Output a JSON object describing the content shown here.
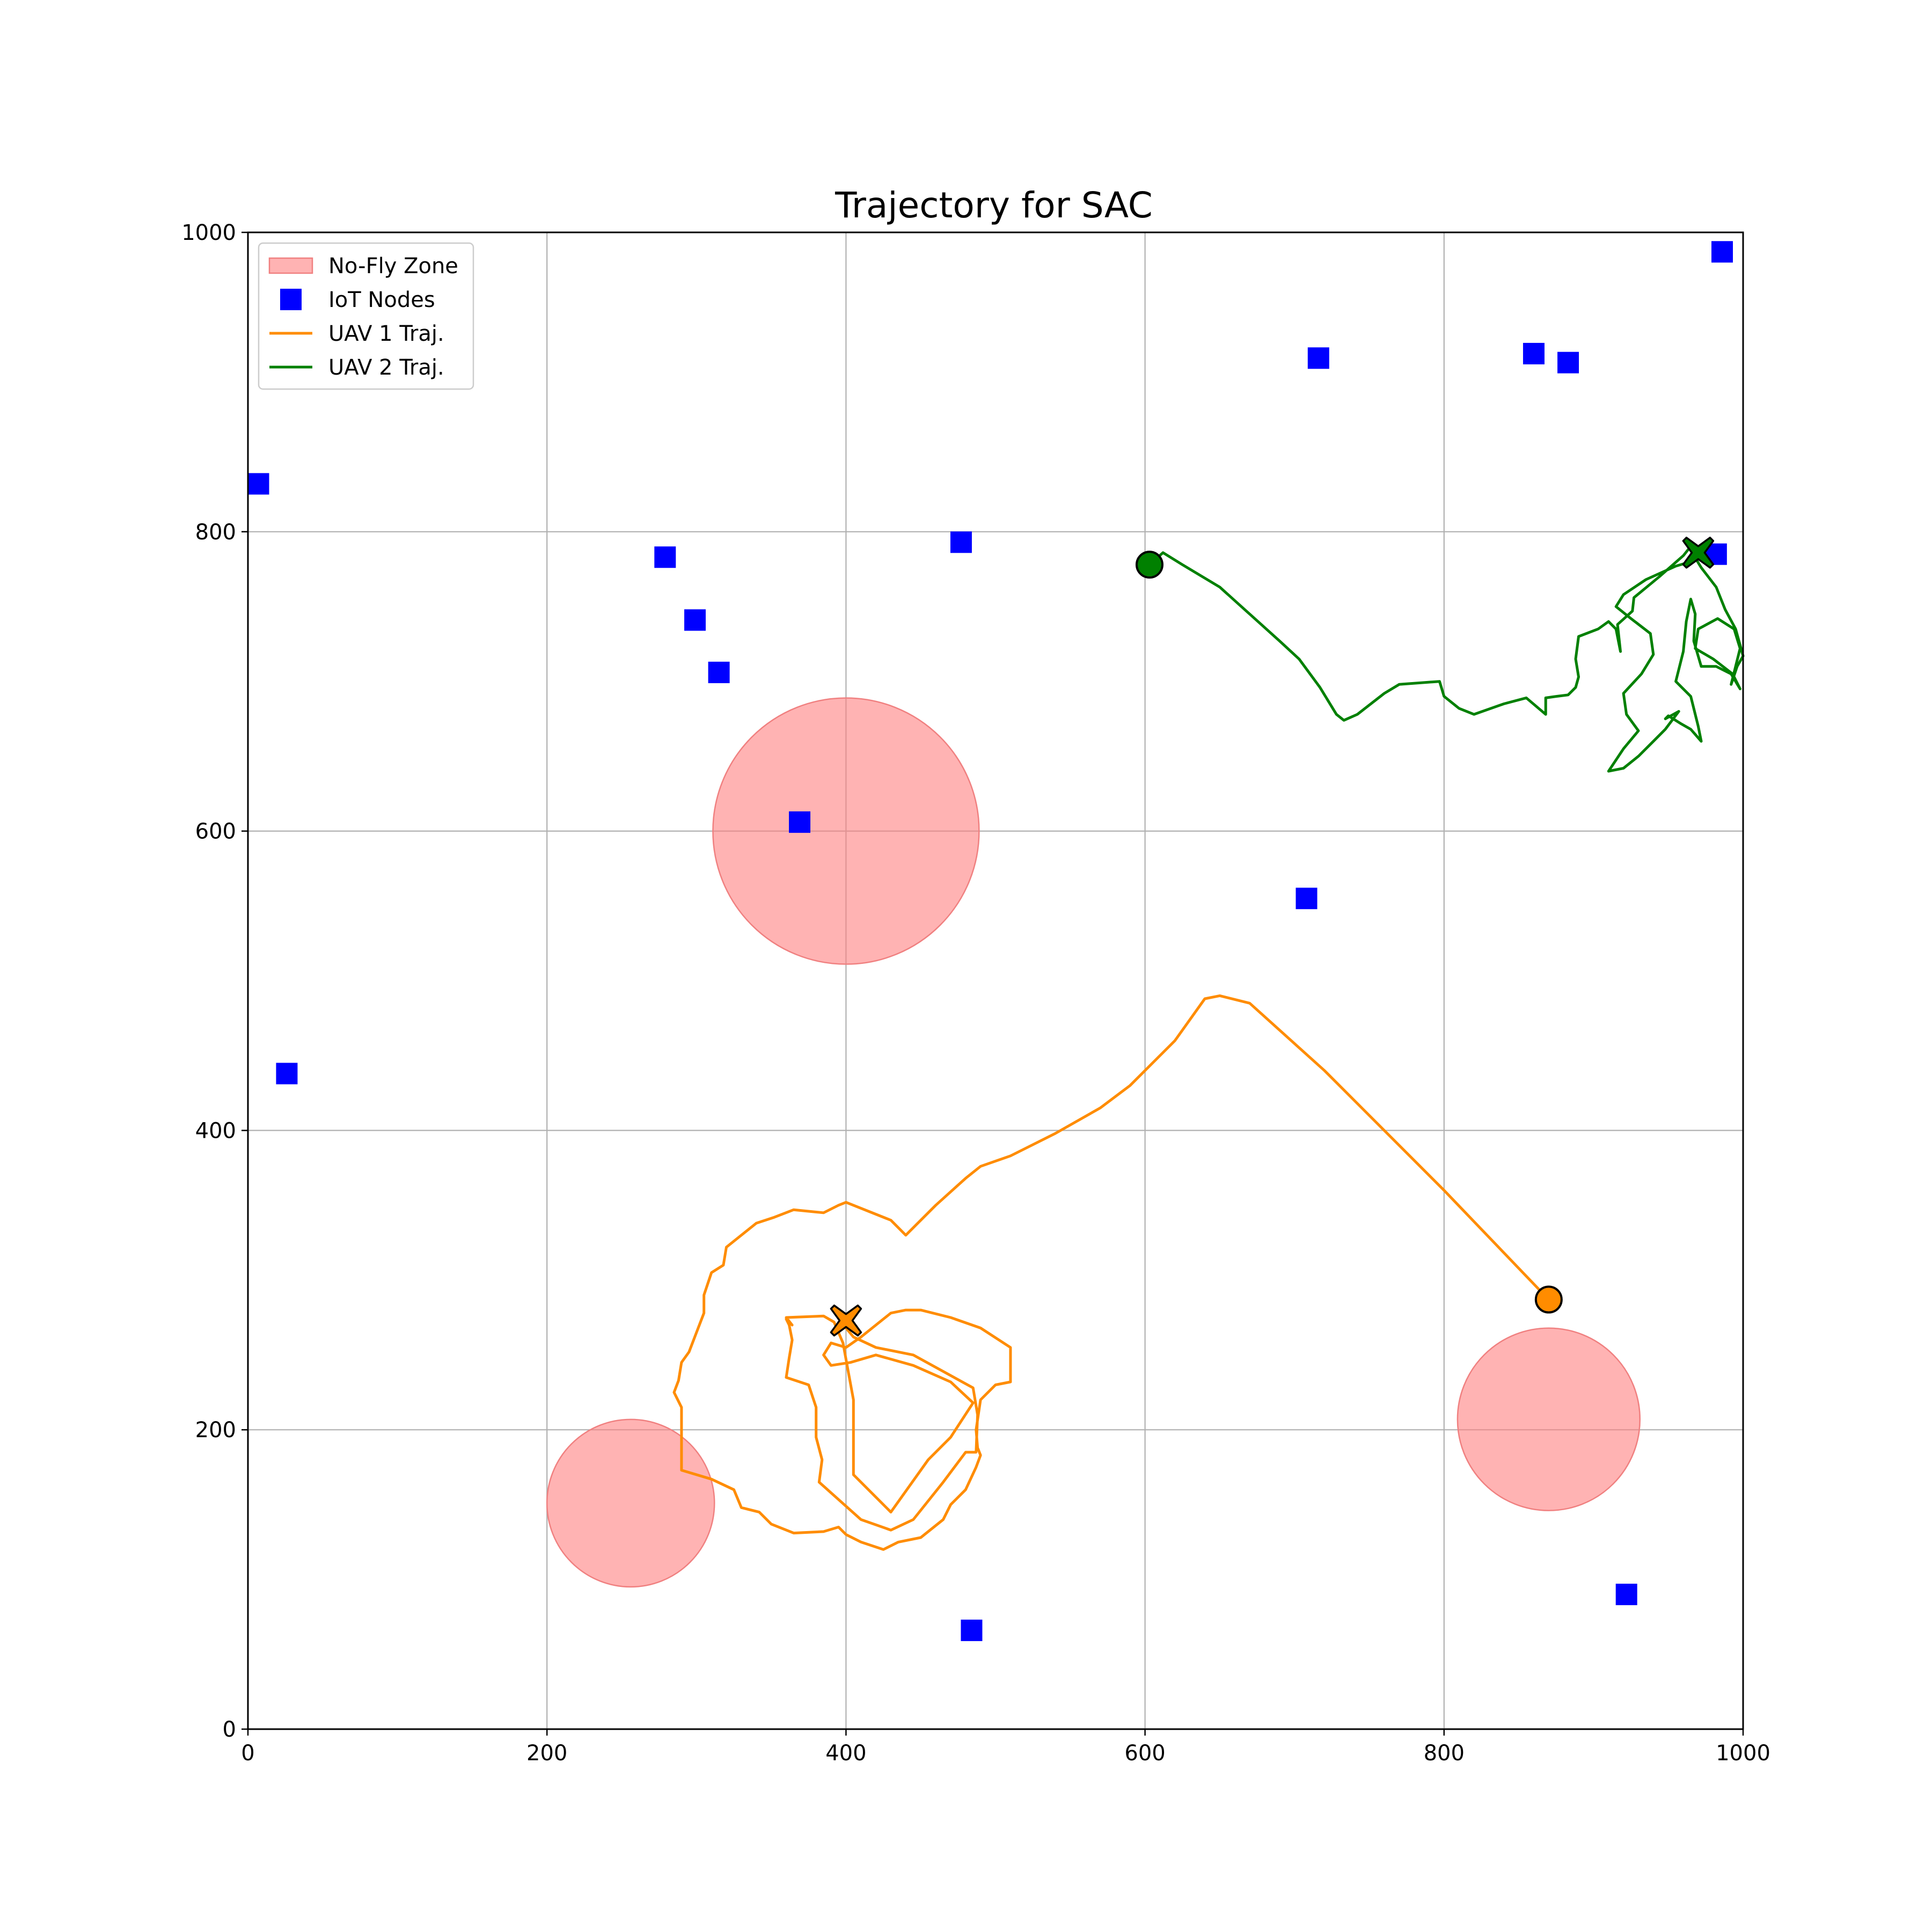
{
  "chart_data": {
    "type": "scatter",
    "title": "Trajectory for SAC",
    "xlabel": "",
    "ylabel": "",
    "xlim": [
      0,
      1000
    ],
    "ylim": [
      0,
      1000
    ],
    "x_ticks": [
      "0",
      "200",
      "400",
      "600",
      "800",
      "1000"
    ],
    "y_ticks": [
      "0",
      "200",
      "400",
      "600",
      "800",
      "1000"
    ],
    "grid": true,
    "legend_position": "top-left",
    "legend": [
      {
        "label": "No-Fly Zone",
        "kind": "patch",
        "color": "#ff8080"
      },
      {
        "label": "IoT Nodes",
        "kind": "square",
        "color": "#0000ff"
      },
      {
        "label": "UAV 1 Traj.",
        "kind": "line",
        "color": "#ff8c00"
      },
      {
        "label": "UAV 2 Traj.",
        "kind": "line",
        "color": "#008000"
      }
    ],
    "no_fly_zones": [
      {
        "cx": 400,
        "cy": 600,
        "r": 89
      },
      {
        "cx": 256,
        "cy": 151,
        "r": 56
      },
      {
        "cx": 870,
        "cy": 207,
        "r": 61
      }
    ],
    "iot_nodes": [
      [
        7,
        832
      ],
      [
        26,
        438
      ],
      [
        279,
        783
      ],
      [
        299,
        741
      ],
      [
        315,
        706
      ],
      [
        369,
        606
      ],
      [
        477,
        793
      ],
      [
        484,
        66
      ],
      [
        708,
        555
      ],
      [
        716,
        916
      ],
      [
        860,
        919
      ],
      [
        883,
        913
      ],
      [
        922,
        90
      ],
      [
        982,
        785
      ],
      [
        986,
        987
      ]
    ],
    "series": [
      {
        "name": "UAV 1 Traj.",
        "color": "#ff8c00",
        "start": [
          870,
          287
        ],
        "end": [
          400,
          273
        ],
        "points": [
          [
            870,
            287
          ],
          [
            800,
            360
          ],
          [
            720,
            440
          ],
          [
            670,
            485
          ],
          [
            650,
            490
          ],
          [
            640,
            488
          ],
          [
            620,
            460
          ],
          [
            590,
            430
          ],
          [
            570,
            415
          ],
          [
            540,
            398
          ],
          [
            510,
            383
          ],
          [
            490,
            376
          ],
          [
            480,
            368
          ],
          [
            460,
            350
          ],
          [
            440,
            330
          ],
          [
            430,
            340
          ],
          [
            400,
            352
          ],
          [
            395,
            350
          ],
          [
            385,
            345
          ],
          [
            365,
            347
          ],
          [
            352,
            342
          ],
          [
            340,
            338
          ],
          [
            330,
            330
          ],
          [
            320,
            322
          ],
          [
            318,
            310
          ],
          [
            310,
            305
          ],
          [
            305,
            290
          ],
          [
            305,
            278
          ],
          [
            300,
            265
          ],
          [
            295,
            252
          ],
          [
            290,
            245
          ],
          [
            288,
            233
          ],
          [
            285,
            225
          ],
          [
            290,
            215
          ],
          [
            290,
            200
          ],
          [
            290,
            173
          ],
          [
            310,
            167
          ],
          [
            325,
            160
          ],
          [
            330,
            148
          ],
          [
            342,
            145
          ],
          [
            350,
            137
          ],
          [
            365,
            131
          ],
          [
            385,
            132
          ],
          [
            395,
            135
          ],
          [
            400,
            130
          ],
          [
            410,
            125
          ],
          [
            425,
            120
          ],
          [
            435,
            125
          ],
          [
            450,
            128
          ],
          [
            465,
            140
          ],
          [
            470,
            150
          ],
          [
            480,
            160
          ],
          [
            487,
            175
          ],
          [
            490,
            183
          ],
          [
            488,
            188
          ],
          [
            487,
            200
          ],
          [
            490,
            220
          ],
          [
            500,
            230
          ],
          [
            510,
            232
          ],
          [
            510,
            255
          ],
          [
            490,
            268
          ],
          [
            470,
            275
          ],
          [
            450,
            280
          ],
          [
            440,
            280
          ],
          [
            430,
            278
          ],
          [
            410,
            262
          ],
          [
            400,
            255
          ],
          [
            390,
            258
          ],
          [
            385,
            250
          ],
          [
            390,
            243
          ],
          [
            403,
            245
          ],
          [
            420,
            250
          ],
          [
            445,
            243
          ],
          [
            470,
            232
          ],
          [
            485,
            218
          ],
          [
            470,
            195
          ],
          [
            455,
            180
          ],
          [
            430,
            145
          ],
          [
            405,
            170
          ],
          [
            405,
            220
          ],
          [
            398,
            258
          ],
          [
            392,
            272
          ],
          [
            385,
            276
          ],
          [
            360,
            275
          ],
          [
            364,
            270
          ],
          [
            360,
            274
          ],
          [
            362,
            270
          ],
          [
            364,
            260
          ],
          [
            362,
            248
          ],
          [
            360,
            235
          ],
          [
            375,
            230
          ],
          [
            380,
            215
          ],
          [
            380,
            195
          ],
          [
            384,
            180
          ],
          [
            382,
            165
          ],
          [
            410,
            140
          ],
          [
            430,
            133
          ],
          [
            445,
            140
          ],
          [
            465,
            165
          ],
          [
            480,
            185
          ],
          [
            487,
            185
          ],
          [
            488,
            210
          ],
          [
            485,
            228
          ],
          [
            445,
            250
          ],
          [
            420,
            255
          ],
          [
            405,
            262
          ],
          [
            400,
            268
          ]
        ]
      },
      {
        "name": "UAV 2 Traj.",
        "color": "#008000",
        "start": [
          603,
          778
        ],
        "end": [
          970,
          786
        ],
        "points": [
          [
            603,
            778
          ],
          [
            612,
            786
          ],
          [
            625,
            778
          ],
          [
            650,
            763
          ],
          [
            670,
            745
          ],
          [
            690,
            727
          ],
          [
            703,
            715
          ],
          [
            717,
            696
          ],
          [
            728,
            678
          ],
          [
            733,
            674
          ],
          [
            742,
            678
          ],
          [
            760,
            692
          ],
          [
            770,
            698
          ],
          [
            797,
            700
          ],
          [
            800,
            690
          ],
          [
            810,
            682
          ],
          [
            820,
            678
          ],
          [
            840,
            685
          ],
          [
            855,
            689
          ],
          [
            868,
            678
          ],
          [
            868,
            689
          ],
          [
            875,
            690
          ],
          [
            883,
            691
          ],
          [
            888,
            696
          ],
          [
            890,
            703
          ],
          [
            888,
            715
          ],
          [
            890,
            730
          ],
          [
            903,
            735
          ],
          [
            910,
            740
          ],
          [
            915,
            735
          ],
          [
            918,
            720
          ],
          [
            916,
            738
          ],
          [
            926,
            747
          ],
          [
            927,
            756
          ],
          [
            944,
            770
          ],
          [
            960,
            784
          ],
          [
            964,
            789
          ],
          [
            972,
            776
          ],
          [
            982,
            763
          ],
          [
            988,
            748
          ],
          [
            995,
            735
          ],
          [
            1000,
            717
          ],
          [
            996,
            710
          ],
          [
            992,
            698
          ],
          [
            998,
            722
          ],
          [
            994,
            735
          ],
          [
            983,
            742
          ],
          [
            970,
            735
          ],
          [
            968,
            722
          ],
          [
            980,
            715
          ],
          [
            993,
            705
          ],
          [
            998,
            695
          ],
          [
            992,
            705
          ],
          [
            982,
            710
          ],
          [
            972,
            710
          ],
          [
            967,
            727
          ],
          [
            968,
            745
          ],
          [
            965,
            755
          ],
          [
            962,
            740
          ],
          [
            960,
            720
          ],
          [
            955,
            700
          ],
          [
            965,
            690
          ],
          [
            970,
            670
          ],
          [
            972,
            660
          ],
          [
            965,
            668
          ],
          [
            958,
            672
          ],
          [
            950,
            677
          ],
          [
            948,
            675
          ],
          [
            957,
            680
          ],
          [
            948,
            668
          ],
          [
            940,
            660
          ],
          [
            930,
            650
          ],
          [
            920,
            642
          ],
          [
            910,
            640
          ],
          [
            920,
            655
          ],
          [
            930,
            667
          ],
          [
            922,
            678
          ],
          [
            920,
            692
          ],
          [
            932,
            705
          ],
          [
            940,
            718
          ],
          [
            938,
            732
          ],
          [
            925,
            742
          ],
          [
            915,
            750
          ],
          [
            920,
            758
          ],
          [
            935,
            768
          ],
          [
            955,
            777
          ],
          [
            965,
            780
          ],
          [
            970,
            785
          ]
        ]
      }
    ]
  }
}
